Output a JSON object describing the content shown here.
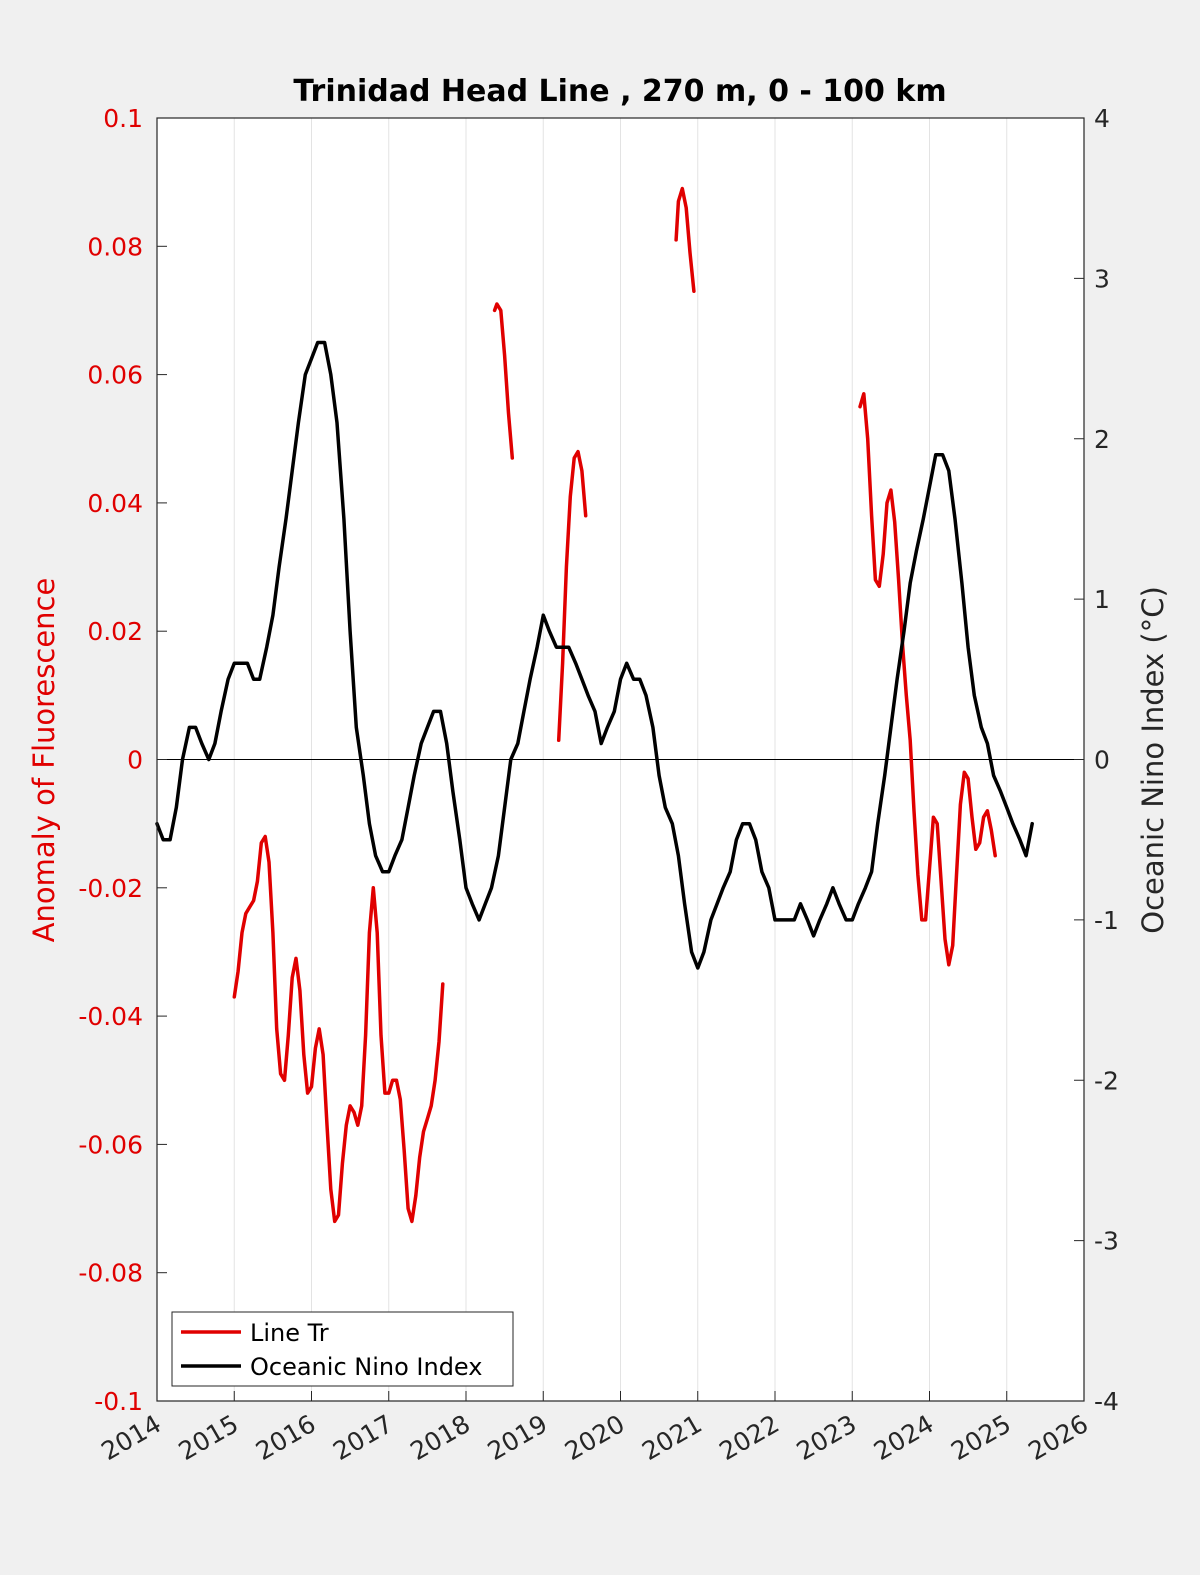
{
  "chart_data": {
    "type": "line",
    "title": "Trinidad Head Line , 270 m, 0 - 100 km",
    "xlabel": "",
    "xlim": [
      2014,
      2026
    ],
    "x_ticks": [
      "2014",
      "2015",
      "2016",
      "2017",
      "2018",
      "2019",
      "2020",
      "2021",
      "2022",
      "2023",
      "2024",
      "2025",
      "2026"
    ],
    "y_left": {
      "label": "Anomaly of Fluorescence",
      "lim": [
        -0.1,
        0.1
      ],
      "ticks": [
        "0.1",
        "0.08",
        "0.06",
        "0.04",
        "0.02",
        "0",
        "-0.02",
        "-0.04",
        "-0.06",
        "-0.08",
        "-0.1"
      ],
      "color": "#e00000"
    },
    "y_right": {
      "label": "Oceanic Nino Index (°C)",
      "lim": [
        -4,
        4
      ],
      "ticks": [
        "4",
        "3",
        "2",
        "1",
        "0",
        "-1",
        "-2",
        "-3",
        "-4"
      ],
      "color": "#262626"
    },
    "grid": "vertical",
    "zero_line": true,
    "legend_position": "bottom-left",
    "series": [
      {
        "name": "Line Tr",
        "axis": "left",
        "color": "#e00000",
        "segments": [
          [
            [
              2015.0,
              -0.037
            ],
            [
              2015.05,
              -0.033
            ],
            [
              2015.1,
              -0.027
            ],
            [
              2015.15,
              -0.024
            ],
            [
              2015.2,
              -0.023
            ],
            [
              2015.25,
              -0.022
            ],
            [
              2015.3,
              -0.019
            ],
            [
              2015.35,
              -0.013
            ],
            [
              2015.4,
              -0.012
            ],
            [
              2015.45,
              -0.016
            ],
            [
              2015.5,
              -0.027
            ],
            [
              2015.55,
              -0.042
            ],
            [
              2015.6,
              -0.049
            ],
            [
              2015.65,
              -0.05
            ],
            [
              2015.7,
              -0.043
            ],
            [
              2015.75,
              -0.034
            ],
            [
              2015.8,
              -0.031
            ],
            [
              2015.85,
              -0.036
            ],
            [
              2015.9,
              -0.046
            ],
            [
              2015.95,
              -0.052
            ],
            [
              2016.0,
              -0.051
            ],
            [
              2016.05,
              -0.045
            ],
            [
              2016.1,
              -0.042
            ],
            [
              2016.15,
              -0.046
            ],
            [
              2016.2,
              -0.057
            ],
            [
              2016.25,
              -0.067
            ],
            [
              2016.3,
              -0.072
            ],
            [
              2016.35,
              -0.071
            ],
            [
              2016.4,
              -0.063
            ],
            [
              2016.45,
              -0.057
            ],
            [
              2016.5,
              -0.054
            ],
            [
              2016.55,
              -0.055
            ],
            [
              2016.6,
              -0.057
            ],
            [
              2016.65,
              -0.054
            ],
            [
              2016.7,
              -0.043
            ],
            [
              2016.75,
              -0.027
            ],
            [
              2016.8,
              -0.02
            ],
            [
              2016.85,
              -0.027
            ],
            [
              2016.9,
              -0.043
            ],
            [
              2016.95,
              -0.052
            ],
            [
              2017.0,
              -0.052
            ],
            [
              2017.05,
              -0.05
            ],
            [
              2017.1,
              -0.05
            ],
            [
              2017.15,
              -0.053
            ],
            [
              2017.2,
              -0.061
            ],
            [
              2017.25,
              -0.07
            ],
            [
              2017.3,
              -0.072
            ],
            [
              2017.35,
              -0.068
            ],
            [
              2017.4,
              -0.062
            ],
            [
              2017.45,
              -0.058
            ],
            [
              2017.5,
              -0.056
            ],
            [
              2017.55,
              -0.054
            ],
            [
              2017.6,
              -0.05
            ],
            [
              2017.65,
              -0.044
            ],
            [
              2017.7,
              -0.035
            ]
          ],
          [
            [
              2018.37,
              0.07
            ],
            [
              2018.4,
              0.071
            ],
            [
              2018.45,
              0.07
            ],
            [
              2018.5,
              0.063
            ],
            [
              2018.55,
              0.054
            ],
            [
              2018.6,
              0.047
            ]
          ],
          [
            [
              2019.2,
              0.003
            ],
            [
              2019.25,
              0.015
            ],
            [
              2019.3,
              0.03
            ],
            [
              2019.35,
              0.041
            ],
            [
              2019.4,
              0.047
            ],
            [
              2019.45,
              0.048
            ],
            [
              2019.5,
              0.045
            ],
            [
              2019.55,
              0.038
            ]
          ],
          [
            [
              2020.72,
              0.081
            ],
            [
              2020.75,
              0.087
            ],
            [
              2020.8,
              0.089
            ],
            [
              2020.85,
              0.086
            ],
            [
              2020.9,
              0.079
            ],
            [
              2020.95,
              0.073
            ]
          ],
          [
            [
              2023.1,
              0.055
            ],
            [
              2023.15,
              0.057
            ],
            [
              2023.2,
              0.05
            ],
            [
              2023.25,
              0.038
            ],
            [
              2023.3,
              0.028
            ],
            [
              2023.35,
              0.027
            ],
            [
              2023.4,
              0.032
            ],
            [
              2023.45,
              0.04
            ],
            [
              2023.5,
              0.042
            ],
            [
              2023.55,
              0.037
            ],
            [
              2023.6,
              0.028
            ],
            [
              2023.65,
              0.018
            ],
            [
              2023.7,
              0.01
            ],
            [
              2023.75,
              0.003
            ],
            [
              2023.8,
              -0.008
            ],
            [
              2023.85,
              -0.018
            ],
            [
              2023.9,
              -0.025
            ],
            [
              2023.95,
              -0.025
            ],
            [
              2024.0,
              -0.017
            ],
            [
              2024.05,
              -0.009
            ],
            [
              2024.1,
              -0.01
            ],
            [
              2024.15,
              -0.019
            ],
            [
              2024.2,
              -0.028
            ],
            [
              2024.25,
              -0.032
            ],
            [
              2024.3,
              -0.029
            ],
            [
              2024.35,
              -0.018
            ],
            [
              2024.4,
              -0.007
            ],
            [
              2024.45,
              -0.002
            ],
            [
              2024.5,
              -0.003
            ],
            [
              2024.55,
              -0.009
            ],
            [
              2024.6,
              -0.014
            ],
            [
              2024.65,
              -0.013
            ],
            [
              2024.7,
              -0.009
            ],
            [
              2024.75,
              -0.008
            ],
            [
              2024.8,
              -0.011
            ],
            [
              2024.85,
              -0.015
            ]
          ]
        ]
      },
      {
        "name": "Oceanic Nino Index",
        "axis": "right",
        "color": "#000000",
        "segments": [
          [
            [
              2014.0,
              -0.4
            ],
            [
              2014.08,
              -0.5
            ],
            [
              2014.17,
              -0.5
            ],
            [
              2014.25,
              -0.3
            ],
            [
              2014.33,
              0.0
            ],
            [
              2014.42,
              0.2
            ],
            [
              2014.5,
              0.2
            ],
            [
              2014.58,
              0.1
            ],
            [
              2014.67,
              0.0
            ],
            [
              2014.75,
              0.1
            ],
            [
              2014.83,
              0.3
            ],
            [
              2014.92,
              0.5
            ],
            [
              2015.0,
              0.6
            ],
            [
              2015.08,
              0.6
            ],
            [
              2015.17,
              0.6
            ],
            [
              2015.25,
              0.5
            ],
            [
              2015.33,
              0.5
            ],
            [
              2015.42,
              0.7
            ],
            [
              2015.5,
              0.9
            ],
            [
              2015.58,
              1.2
            ],
            [
              2015.67,
              1.5
            ],
            [
              2015.75,
              1.8
            ],
            [
              2015.83,
              2.1
            ],
            [
              2015.92,
              2.4
            ],
            [
              2016.0,
              2.5
            ],
            [
              2016.08,
              2.6
            ],
            [
              2016.17,
              2.6
            ],
            [
              2016.25,
              2.4
            ],
            [
              2016.33,
              2.1
            ],
            [
              2016.42,
              1.5
            ],
            [
              2016.5,
              0.8
            ],
            [
              2016.58,
              0.2
            ],
            [
              2016.67,
              -0.1
            ],
            [
              2016.75,
              -0.4
            ],
            [
              2016.83,
              -0.6
            ],
            [
              2016.92,
              -0.7
            ],
            [
              2017.0,
              -0.7
            ],
            [
              2017.08,
              -0.6
            ],
            [
              2017.17,
              -0.5
            ],
            [
              2017.25,
              -0.3
            ],
            [
              2017.33,
              -0.1
            ],
            [
              2017.42,
              0.1
            ],
            [
              2017.5,
              0.2
            ],
            [
              2017.58,
              0.3
            ],
            [
              2017.67,
              0.3
            ],
            [
              2017.75,
              0.1
            ],
            [
              2017.83,
              -0.2
            ],
            [
              2017.92,
              -0.5
            ],
            [
              2018.0,
              -0.8
            ],
            [
              2018.08,
              -0.9
            ],
            [
              2018.17,
              -1.0
            ],
            [
              2018.25,
              -0.9
            ],
            [
              2018.33,
              -0.8
            ],
            [
              2018.42,
              -0.6
            ],
            [
              2018.5,
              -0.3
            ],
            [
              2018.58,
              0.0
            ],
            [
              2018.67,
              0.1
            ],
            [
              2018.75,
              0.3
            ],
            [
              2018.83,
              0.5
            ],
            [
              2018.92,
              0.7
            ],
            [
              2019.0,
              0.9
            ],
            [
              2019.08,
              0.8
            ],
            [
              2019.17,
              0.7
            ],
            [
              2019.25,
              0.7
            ],
            [
              2019.33,
              0.7
            ],
            [
              2019.42,
              0.6
            ],
            [
              2019.5,
              0.5
            ],
            [
              2019.58,
              0.4
            ],
            [
              2019.67,
              0.3
            ],
            [
              2019.75,
              0.1
            ],
            [
              2019.83,
              0.2
            ],
            [
              2019.92,
              0.3
            ],
            [
              2020.0,
              0.5
            ],
            [
              2020.08,
              0.6
            ],
            [
              2020.17,
              0.5
            ],
            [
              2020.25,
              0.5
            ],
            [
              2020.33,
              0.4
            ],
            [
              2020.42,
              0.2
            ],
            [
              2020.5,
              -0.1
            ],
            [
              2020.58,
              -0.3
            ],
            [
              2020.67,
              -0.4
            ],
            [
              2020.75,
              -0.6
            ],
            [
              2020.83,
              -0.9
            ],
            [
              2020.92,
              -1.2
            ],
            [
              2021.0,
              -1.3
            ],
            [
              2021.08,
              -1.2
            ],
            [
              2021.17,
              -1.0
            ],
            [
              2021.25,
              -0.9
            ],
            [
              2021.33,
              -0.8
            ],
            [
              2021.42,
              -0.7
            ],
            [
              2021.5,
              -0.5
            ],
            [
              2021.58,
              -0.4
            ],
            [
              2021.67,
              -0.4
            ],
            [
              2021.75,
              -0.5
            ],
            [
              2021.83,
              -0.7
            ],
            [
              2021.92,
              -0.8
            ],
            [
              2022.0,
              -1.0
            ],
            [
              2022.08,
              -1.0
            ],
            [
              2022.17,
              -1.0
            ],
            [
              2022.25,
              -1.0
            ],
            [
              2022.33,
              -0.9
            ],
            [
              2022.42,
              -1.0
            ],
            [
              2022.5,
              -1.1
            ],
            [
              2022.58,
              -1.0
            ],
            [
              2022.67,
              -0.9
            ],
            [
              2022.75,
              -0.8
            ],
            [
              2022.83,
              -0.9
            ],
            [
              2022.92,
              -1.0
            ],
            [
              2023.0,
              -1.0
            ],
            [
              2023.08,
              -0.9
            ],
            [
              2023.17,
              -0.8
            ],
            [
              2023.25,
              -0.7
            ],
            [
              2023.33,
              -0.4
            ],
            [
              2023.42,
              -0.1
            ],
            [
              2023.5,
              0.2
            ],
            [
              2023.58,
              0.5
            ],
            [
              2023.67,
              0.8
            ],
            [
              2023.75,
              1.1
            ],
            [
              2023.83,
              1.3
            ],
            [
              2023.92,
              1.5
            ],
            [
              2024.0,
              1.7
            ],
            [
              2024.08,
              1.9
            ],
            [
              2024.17,
              1.9
            ],
            [
              2024.25,
              1.8
            ],
            [
              2024.33,
              1.5
            ],
            [
              2024.42,
              1.1
            ],
            [
              2024.5,
              0.7
            ],
            [
              2024.58,
              0.4
            ],
            [
              2024.67,
              0.2
            ],
            [
              2024.75,
              0.1
            ],
            [
              2024.83,
              -0.1
            ],
            [
              2024.92,
              -0.2
            ],
            [
              2025.0,
              -0.3
            ],
            [
              2025.08,
              -0.4
            ],
            [
              2025.17,
              -0.5
            ],
            [
              2025.25,
              -0.6
            ],
            [
              2025.33,
              -0.4
            ]
          ]
        ]
      }
    ]
  }
}
